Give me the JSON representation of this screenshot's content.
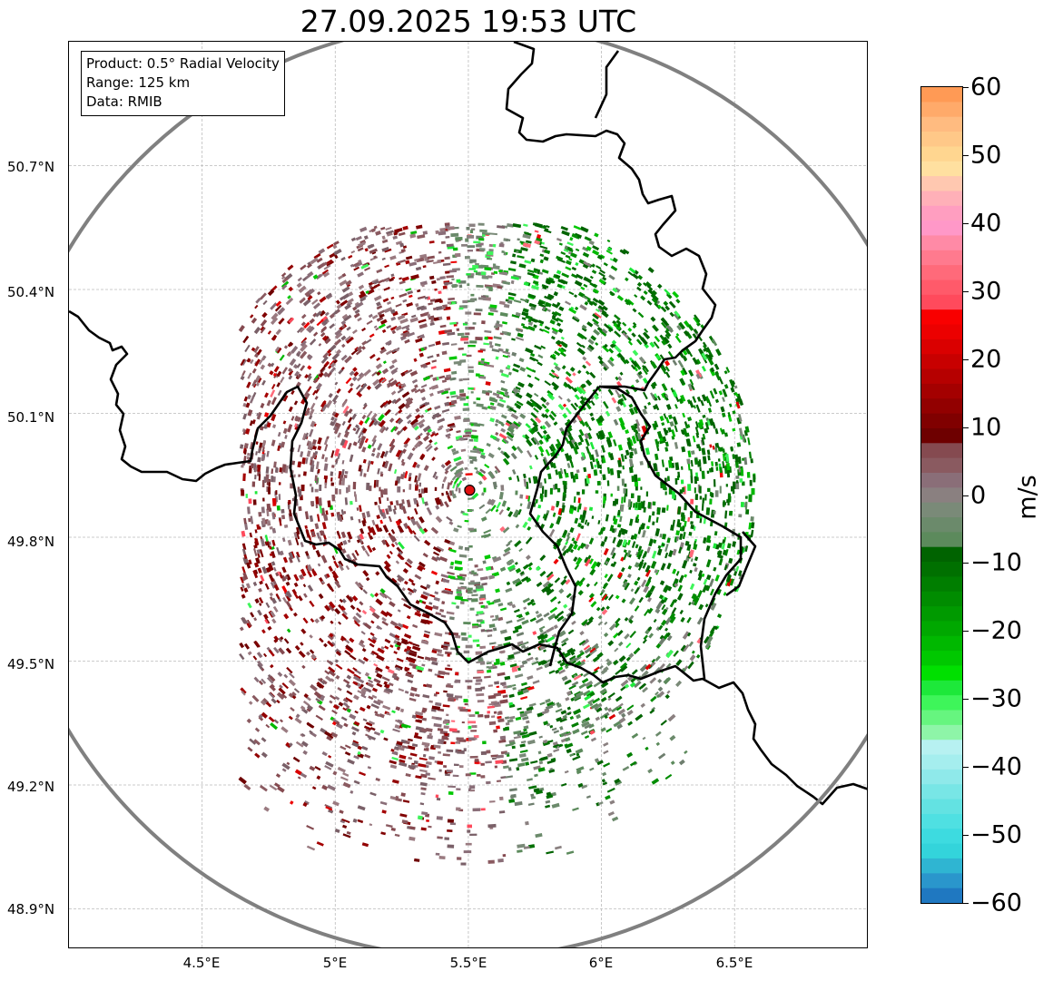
{
  "title": "27.09.2025 19:53 UTC",
  "info": {
    "product": "Product: 0.5° Radial Velocity",
    "range": "Range: 125 km",
    "source": "Data: RMIB"
  },
  "lat_labels": [
    "50.7°N",
    "50.4°N",
    "50.1°N",
    "49.8°N",
    "49.5°N",
    "49.2°N",
    "48.9°N"
  ],
  "lon_labels": [
    "4.5°E",
    "5°E",
    "5.5°E",
    "6°E",
    "6.5°E"
  ],
  "colorbar": {
    "unit": "m/s",
    "ticks": [
      "60",
      "50",
      "40",
      "30",
      "20",
      "10",
      "0",
      "−10",
      "−20",
      "−30",
      "−40",
      "−50",
      "−60"
    ],
    "min": -60,
    "max": 60,
    "colors": [
      "#1f78c1",
      "#2a96cc",
      "#2fb5d2",
      "#33d4db",
      "#3ddbe0",
      "#4fe0e2",
      "#63e2e2",
      "#78e6e6",
      "#8fe9ea",
      "#a5eeee",
      "#b7f1f1",
      "#8ef5a8",
      "#66f57f",
      "#3ef55a",
      "#1de83a",
      "#00e000",
      "#00c800",
      "#00b800",
      "#00a800",
      "#009a00",
      "#008c00",
      "#007e00",
      "#007000",
      "#006300",
      "#5c8a5c",
      "#6b8a6b",
      "#7a8a78",
      "#8a8080",
      "#8a6e78",
      "#8a5a60",
      "#854a50",
      "#6e0000",
      "#800000",
      "#920000",
      "#a40000",
      "#b60000",
      "#c80000",
      "#da0000",
      "#ec0000",
      "#f90000",
      "#ff4a5c",
      "#ff5a6a",
      "#ff6a7a",
      "#ff7a8e",
      "#ff8aa6",
      "#ff98c8",
      "#ff9ec0",
      "#ffb0b8",
      "#ffc8b0",
      "#ffe0a0",
      "#ffd690",
      "#ffc888",
      "#ffbb80",
      "#ffaa6a",
      "#ff9a55"
    ]
  },
  "map": {
    "radar_site": {
      "lon": 5.505,
      "lat": 49.914
    },
    "range_km": 125,
    "lon_range": [
      4.0,
      7.0
    ],
    "lat_range": [
      48.8,
      51.0
    ]
  }
}
